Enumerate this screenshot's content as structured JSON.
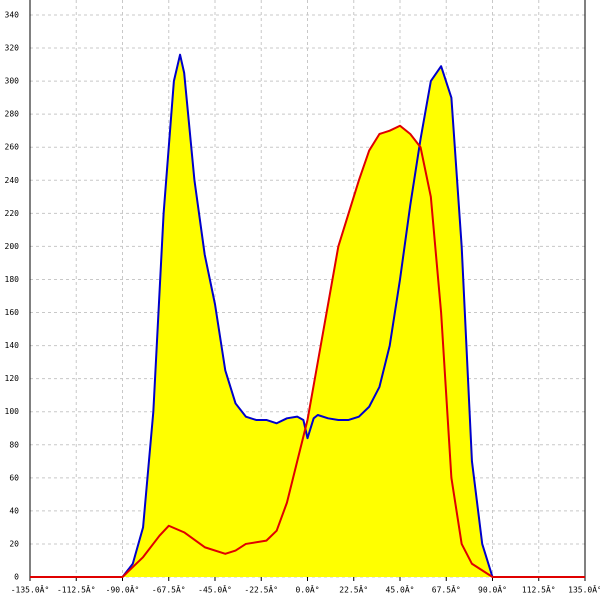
{
  "chart_data": {
    "type": "area",
    "xlim": [
      -135,
      135
    ],
    "xticks": [
      {
        "value": -135,
        "label": "-135.0Â°"
      },
      {
        "value": -112.5,
        "label": "-112.5Â°"
      },
      {
        "value": -90,
        "label": "-90.0Â°"
      },
      {
        "value": -67.5,
        "label": "-67.5Â°"
      },
      {
        "value": -45,
        "label": "-45.0Â°"
      },
      {
        "value": -22.5,
        "label": "-22.5Â°"
      },
      {
        "value": 0,
        "label": "0.0Â°"
      },
      {
        "value": 22.5,
        "label": "22.5Â°"
      },
      {
        "value": 45,
        "label": "45.0Â°"
      },
      {
        "value": 67.5,
        "label": "67.5Â°"
      },
      {
        "value": 90,
        "label": "90.0Â°"
      },
      {
        "value": 112.5,
        "label": "112.5Â°"
      },
      {
        "value": 135,
        "label": "135.0Â°"
      }
    ],
    "ylim": [
      0,
      340
    ],
    "yticks": [
      0,
      20,
      40,
      60,
      80,
      100,
      120,
      140,
      160,
      180,
      200,
      220,
      240,
      260,
      280,
      300,
      320,
      340
    ],
    "grid": true,
    "fill_color": "#ffff00",
    "series": [
      {
        "color": "#0000cc",
        "x": [
          -90,
          -85,
          -80,
          -75,
          -70,
          -65,
          -62,
          -60,
          -55,
          -50,
          -45,
          -40,
          -35,
          -30,
          -25,
          -20,
          -15,
          -10,
          -5,
          -2,
          0,
          3,
          5,
          10,
          15,
          20,
          25,
          30,
          35,
          40,
          45,
          50,
          55,
          60,
          65,
          70,
          75,
          80,
          85,
          90
        ],
        "values": [
          0,
          8,
          30,
          100,
          220,
          300,
          316,
          305,
          240,
          195,
          165,
          125,
          105,
          97,
          95,
          95,
          93,
          96,
          97,
          95,
          84,
          96,
          98,
          96,
          95,
          95,
          97,
          103,
          115,
          140,
          180,
          225,
          265,
          300,
          309,
          290,
          200,
          70,
          20,
          0
        ]
      },
      {
        "color": "#e00000",
        "x": [
          -135,
          -90,
          -80,
          -72,
          -67.5,
          -60,
          -50,
          -40,
          -35,
          -30,
          -20,
          -15,
          -10,
          -5,
          0,
          5,
          10,
          15,
          20,
          25,
          30,
          35,
          40,
          45,
          50,
          55,
          60,
          65,
          70,
          75,
          80,
          90,
          135
        ],
        "values": [
          0,
          0,
          12,
          25,
          31,
          27,
          18,
          14,
          16,
          20,
          22,
          28,
          45,
          70,
          95,
          130,
          165,
          200,
          220,
          240,
          258,
          268,
          270,
          273,
          268,
          260,
          230,
          160,
          60,
          20,
          8,
          0,
          0
        ]
      }
    ]
  }
}
